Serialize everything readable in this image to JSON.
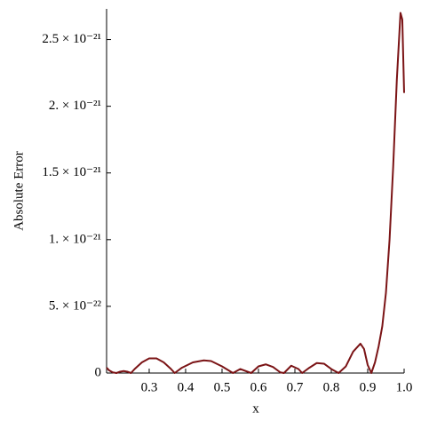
{
  "chart_data": {
    "type": "line",
    "x_label": "x",
    "y_label": "Absolute Error",
    "color": "#7b1416",
    "x": [
      0.183,
      0.19,
      0.2,
      0.21,
      0.22,
      0.23,
      0.24,
      0.25,
      0.26,
      0.28,
      0.3,
      0.32,
      0.34,
      0.36,
      0.37,
      0.39,
      0.42,
      0.45,
      0.47,
      0.5,
      0.53,
      0.55,
      0.57,
      0.58,
      0.6,
      0.62,
      0.64,
      0.66,
      0.67,
      0.69,
      0.71,
      0.72,
      0.74,
      0.76,
      0.78,
      0.8,
      0.82,
      0.84,
      0.86,
      0.88,
      0.89,
      0.9,
      0.91,
      0.92,
      0.93,
      0.94,
      0.95,
      0.96,
      0.97,
      0.98,
      0.99,
      0.995,
      1.0
    ],
    "values": [
      4e-23,
      2e-23,
      5e-24,
      0,
      1e-23,
      1.5e-23,
      1e-23,
      0,
      3e-23,
      8e-23,
      1.1e-22,
      1.1e-22,
      8e-23,
      3e-23,
      0,
      4e-23,
      8e-23,
      9.5e-23,
      9e-23,
      5e-23,
      0,
      3e-23,
      1e-23,
      0,
      5e-23,
      6.5e-23,
      4.5e-23,
      5e-24,
      0,
      5.5e-23,
      3e-23,
      0,
      4e-23,
      7.5e-23,
      7e-23,
      3e-23,
      0,
      5e-23,
      1.6e-22,
      2.2e-22,
      1.8e-22,
      6e-23,
      0,
      8e-23,
      2e-22,
      3.5e-22,
      6e-22,
      1e-21,
      1.55e-21,
      2.2e-21,
      2.7e-21,
      2.65e-21,
      2.1e-21
    ],
    "xlim": [
      0.183,
      1.0
    ],
    "xticks": [
      0.3,
      0.4,
      0.5,
      0.6,
      0.7,
      0.8,
      0.9,
      {
        "value": 1.0,
        "label": "1.0"
      }
    ],
    "ylim": [
      0,
      2.73e-21
    ],
    "yticks": [
      0,
      {
        "value": 5e-22,
        "label": "5. × 10⁻²²"
      },
      {
        "value": 1e-21,
        "label": "1. × 10⁻²¹"
      },
      {
        "value": 1.5e-21,
        "label": "1.5 × 10⁻²¹"
      },
      {
        "value": 2e-21,
        "label": "2. × 10⁻²¹"
      },
      {
        "value": 2.5e-21,
        "label": "2.5 × 10⁻²¹"
      }
    ]
  }
}
